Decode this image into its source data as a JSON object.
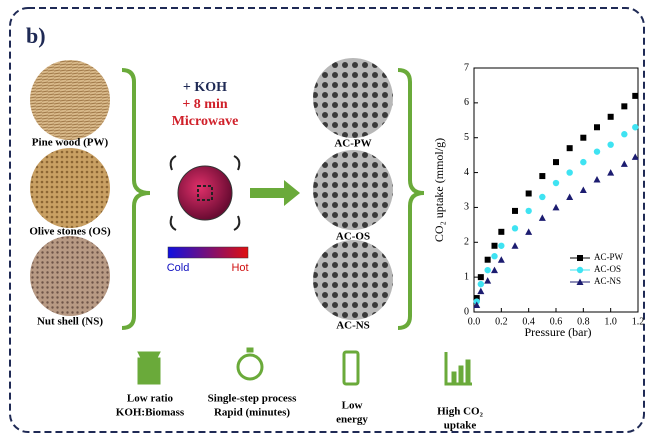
{
  "panel_label": "b)",
  "precursors": [
    "Pine wood (PW)",
    "Olive stones (OS)",
    "Nut shell (NS)"
  ],
  "process": {
    "lines": [
      "+ KOH",
      "+ 8 min",
      "Microwave"
    ],
    "cold": "Cold",
    "hot": "Hot"
  },
  "products": [
    "AC-PW",
    "AC-OS",
    "AC-NS"
  ],
  "features": [
    {
      "lines": [
        "Low ratio",
        "KOH:Biomass"
      ]
    },
    {
      "lines": [
        "Single-step process",
        "Rapid (minutes)"
      ]
    },
    {
      "lines": [
        "Low",
        "energy"
      ]
    },
    {
      "lines": [
        "High CO₂",
        "uptake"
      ]
    }
  ],
  "chart_data": {
    "type": "scatter",
    "xlabel": "Pressure (bar)",
    "ylabel": "CO₂ uptake (mmol/g)",
    "x": [
      0.02,
      0.05,
      0.1,
      0.15,
      0.2,
      0.3,
      0.4,
      0.5,
      0.6,
      0.7,
      0.8,
      0.9,
      1.0,
      1.1,
      1.18
    ],
    "series": [
      {
        "name": "AC-PW",
        "color": "#000000",
        "marker": "square",
        "values": [
          0.4,
          1.0,
          1.5,
          1.9,
          2.3,
          2.9,
          3.4,
          3.9,
          4.3,
          4.7,
          5.0,
          5.3,
          5.6,
          5.9,
          6.2
        ]
      },
      {
        "name": "AC-OS",
        "color": "#3fe3f2",
        "marker": "circle",
        "values": [
          0.3,
          0.8,
          1.2,
          1.6,
          1.9,
          2.4,
          2.9,
          3.3,
          3.7,
          4.0,
          4.3,
          4.6,
          4.8,
          5.1,
          5.3
        ]
      },
      {
        "name": "AC-NS",
        "color": "#1c1c70",
        "marker": "triangle",
        "values": [
          0.2,
          0.6,
          0.9,
          1.2,
          1.5,
          1.9,
          2.3,
          2.7,
          3.0,
          3.3,
          3.5,
          3.8,
          4.0,
          4.25,
          4.45
        ]
      }
    ],
    "xlim": [
      0,
      1.2
    ],
    "xticks": [
      {
        "value": 0,
        "label": "0.0"
      },
      {
        "value": 0.2,
        "label": "0.2"
      },
      {
        "value": 0.4,
        "label": "0.4"
      },
      {
        "value": 0.6,
        "label": "0.6"
      },
      {
        "value": 0.8,
        "label": "0.8"
      },
      {
        "value": 1.0,
        "label": "1.0"
      },
      {
        "value": 1.2,
        "label": "1.2"
      }
    ],
    "ylim": [
      0,
      7
    ],
    "yticks": [
      0,
      1,
      2,
      3,
      4,
      5,
      6,
      7
    ],
    "legend": "lower right"
  }
}
